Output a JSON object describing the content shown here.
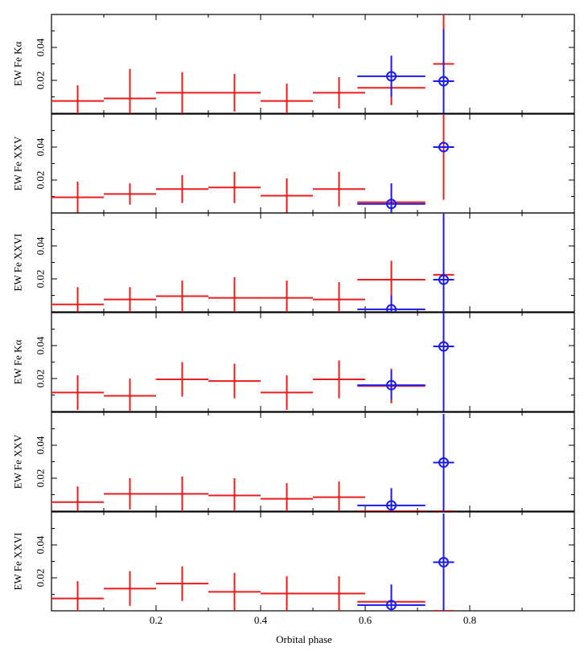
{
  "chart_data": {
    "type": "scatter",
    "xlabel": "Orbital phase",
    "xlim": [
      0,
      1
    ],
    "x_ticks": [
      "0.2",
      "0.4",
      "0.6",
      "0.8"
    ],
    "x_tick_values": [
      0.2,
      0.4,
      0.6,
      0.8
    ],
    "ylim": [
      0,
      0.06
    ],
    "y_ticks": [
      "0.02",
      "0.04"
    ],
    "y_tick_values": [
      0.02,
      0.04
    ],
    "colors": {
      "red": "#ee1c1c",
      "blue": "#1a1aee"
    },
    "panels": [
      {
        "ylabel": "EW Fe Kα",
        "series": [
          {
            "color": "red",
            "marker": "none",
            "points": [
              {
                "x": 0.05,
                "xerr": 0.05,
                "y": 0.0075,
                "yerr": 0.0095
              },
              {
                "x": 0.15,
                "xerr": 0.05,
                "y": 0.009,
                "yerr": 0.018
              },
              {
                "x": 0.25,
                "xerr": 0.05,
                "y": 0.0125,
                "yerr": 0.0125
              },
              {
                "x": 0.35,
                "xerr": 0.05,
                "y": 0.0125,
                "yerr": 0.0115
              },
              {
                "x": 0.45,
                "xerr": 0.05,
                "y": 0.0075,
                "yerr": 0.0105
              },
              {
                "x": 0.55,
                "xerr": 0.05,
                "y": 0.0125,
                "yerr": 0.0095
              },
              {
                "x": 0.65,
                "xerr": 0.065,
                "y": 0.0155,
                "yerr": 0.0105
              },
              {
                "x": 0.75,
                "xerr": 0.02,
                "y": 0.03,
                "yerr": 0.03
              }
            ]
          },
          {
            "color": "blue",
            "marker": "circle",
            "points": [
              {
                "x": 0.65,
                "xerr": 0.065,
                "y": 0.0225,
                "yerr": 0.0125
              },
              {
                "x": 0.75,
                "xerr": 0.02,
                "y": 0.0195,
                "yerr": 0.0315
              }
            ]
          }
        ]
      },
      {
        "ylabel": "EW Fe XXV",
        "series": [
          {
            "color": "red",
            "marker": "none",
            "points": [
              {
                "x": 0.05,
                "xerr": 0.05,
                "y": 0.0095,
                "yerr": 0.0095
              },
              {
                "x": 0.15,
                "xerr": 0.05,
                "y": 0.0115,
                "yerr": 0.0065
              },
              {
                "x": 0.25,
                "xerr": 0.05,
                "y": 0.0145,
                "yerr": 0.0085
              },
              {
                "x": 0.35,
                "xerr": 0.05,
                "y": 0.0155,
                "yerr": 0.0095
              },
              {
                "x": 0.45,
                "xerr": 0.05,
                "y": 0.0105,
                "yerr": 0.0105
              },
              {
                "x": 0.55,
                "xerr": 0.05,
                "y": 0.0145,
                "yerr": 0.0105
              },
              {
                "x": 0.65,
                "xerr": 0.065,
                "y": 0.0065,
                "yerr": 0.0015
              },
              {
                "x": 0.75,
                "xerr": 0.02,
                "y": 0.04,
                "yerr": 0.032
              }
            ]
          },
          {
            "color": "blue",
            "marker": "circle",
            "points": [
              {
                "x": 0.65,
                "xerr": 0.065,
                "y": 0.0055,
                "yerr": 0.0125
              },
              {
                "x": 0.75,
                "xerr": 0.02,
                "y": 0.04,
                "yerr": 0.0
              }
            ]
          }
        ]
      },
      {
        "ylabel": "EW Fe XXVI",
        "series": [
          {
            "color": "red",
            "marker": "none",
            "points": [
              {
                "x": 0.05,
                "xerr": 0.05,
                "y": 0.0045,
                "yerr": 0.0105
              },
              {
                "x": 0.15,
                "xerr": 0.05,
                "y": 0.0075,
                "yerr": 0.0075
              },
              {
                "x": 0.25,
                "xerr": 0.05,
                "y": 0.0095,
                "yerr": 0.0095
              },
              {
                "x": 0.35,
                "xerr": 0.05,
                "y": 0.0085,
                "yerr": 0.0125
              },
              {
                "x": 0.45,
                "xerr": 0.05,
                "y": 0.0085,
                "yerr": 0.0105
              },
              {
                "x": 0.55,
                "xerr": 0.05,
                "y": 0.0075,
                "yerr": 0.0105
              },
              {
                "x": 0.65,
                "xerr": 0.065,
                "y": 0.0195,
                "yerr": 0.0115
              },
              {
                "x": 0.75,
                "xerr": 0.02,
                "y": 0.0225,
                "yerr": 0.0
              }
            ]
          },
          {
            "color": "blue",
            "marker": "circle",
            "points": [
              {
                "x": 0.65,
                "xerr": 0.065,
                "y": 0.0015,
                "yerr": 0.0085
              },
              {
                "x": 0.75,
                "xerr": 0.02,
                "y": 0.0195,
                "yerr": 0.0445
              }
            ]
          }
        ]
      },
      {
        "ylabel": "EW Fe Kα",
        "series": [
          {
            "color": "red",
            "marker": "none",
            "points": [
              {
                "x": 0.05,
                "xerr": 0.05,
                "y": 0.0115,
                "yerr": 0.0105
              },
              {
                "x": 0.15,
                "xerr": 0.05,
                "y": 0.0095,
                "yerr": 0.0105
              },
              {
                "x": 0.25,
                "xerr": 0.05,
                "y": 0.0195,
                "yerr": 0.0105
              },
              {
                "x": 0.35,
                "xerr": 0.05,
                "y": 0.0185,
                "yerr": 0.0105
              },
              {
                "x": 0.45,
                "xerr": 0.05,
                "y": 0.0115,
                "yerr": 0.0105
              },
              {
                "x": 0.55,
                "xerr": 0.05,
                "y": 0.0195,
                "yerr": 0.0115
              },
              {
                "x": 0.65,
                "xerr": 0.065,
                "y": 0.0155,
                "yerr": 0.0105
              },
              {
                "x": 0.75,
                "xerr": 0.02,
                "y": 0.0395,
                "yerr": 0.0
              }
            ]
          },
          {
            "color": "blue",
            "marker": "circle",
            "points": [
              {
                "x": 0.65,
                "xerr": 0.065,
                "y": 0.016,
                "yerr": 0.009
              },
              {
                "x": 0.75,
                "xerr": 0.02,
                "y": 0.0395,
                "yerr": 0.0395
              }
            ]
          }
        ]
      },
      {
        "ylabel": "EW Fe XXV",
        "series": [
          {
            "color": "red",
            "marker": "none",
            "points": [
              {
                "x": 0.05,
                "xerr": 0.05,
                "y": 0.0055,
                "yerr": 0.0095
              },
              {
                "x": 0.15,
                "xerr": 0.05,
                "y": 0.0105,
                "yerr": 0.0095
              },
              {
                "x": 0.25,
                "xerr": 0.05,
                "y": 0.0105,
                "yerr": 0.0105
              },
              {
                "x": 0.35,
                "xerr": 0.05,
                "y": 0.0095,
                "yerr": 0.0105
              },
              {
                "x": 0.45,
                "xerr": 0.05,
                "y": 0.0075,
                "yerr": 0.0095
              },
              {
                "x": 0.55,
                "xerr": 0.05,
                "y": 0.0085,
                "yerr": 0.0095
              },
              {
                "x": 0.65,
                "xerr": 0.065,
                "y": 0.0,
                "yerr": 0.0
              },
              {
                "x": 0.75,
                "xerr": 0.02,
                "y": 0.0,
                "yerr": 0.0
              }
            ]
          },
          {
            "color": "blue",
            "marker": "circle",
            "points": [
              {
                "x": 0.65,
                "xerr": 0.065,
                "y": 0.0035,
                "yerr": 0.0105
              },
              {
                "x": 0.75,
                "xerr": 0.02,
                "y": 0.0295,
                "yerr": 0.0295
              }
            ]
          }
        ]
      },
      {
        "ylabel": "EW Fe XXVI",
        "series": [
          {
            "color": "red",
            "marker": "none",
            "points": [
              {
                "x": 0.05,
                "xerr": 0.05,
                "y": 0.0075,
                "yerr": 0.0105
              },
              {
                "x": 0.15,
                "xerr": 0.05,
                "y": 0.0135,
                "yerr": 0.0105
              },
              {
                "x": 0.25,
                "xerr": 0.05,
                "y": 0.0165,
                "yerr": 0.0105
              },
              {
                "x": 0.35,
                "xerr": 0.05,
                "y": 0.0115,
                "yerr": 0.0115
              },
              {
                "x": 0.45,
                "xerr": 0.05,
                "y": 0.0105,
                "yerr": 0.0105
              },
              {
                "x": 0.55,
                "xerr": 0.05,
                "y": 0.0105,
                "yerr": 0.0105
              },
              {
                "x": 0.65,
                "xerr": 0.065,
                "y": 0.0055,
                "yerr": 0.0
              },
              {
                "x": 0.75,
                "xerr": 0.02,
                "y": 0.0,
                "yerr": 0.0
              }
            ]
          },
          {
            "color": "blue",
            "marker": "circle",
            "points": [
              {
                "x": 0.65,
                "xerr": 0.065,
                "y": 0.0035,
                "yerr": 0.0125
              },
              {
                "x": 0.75,
                "xerr": 0.02,
                "y": 0.0295,
                "yerr": 0.0295
              }
            ]
          }
        ]
      }
    ]
  }
}
